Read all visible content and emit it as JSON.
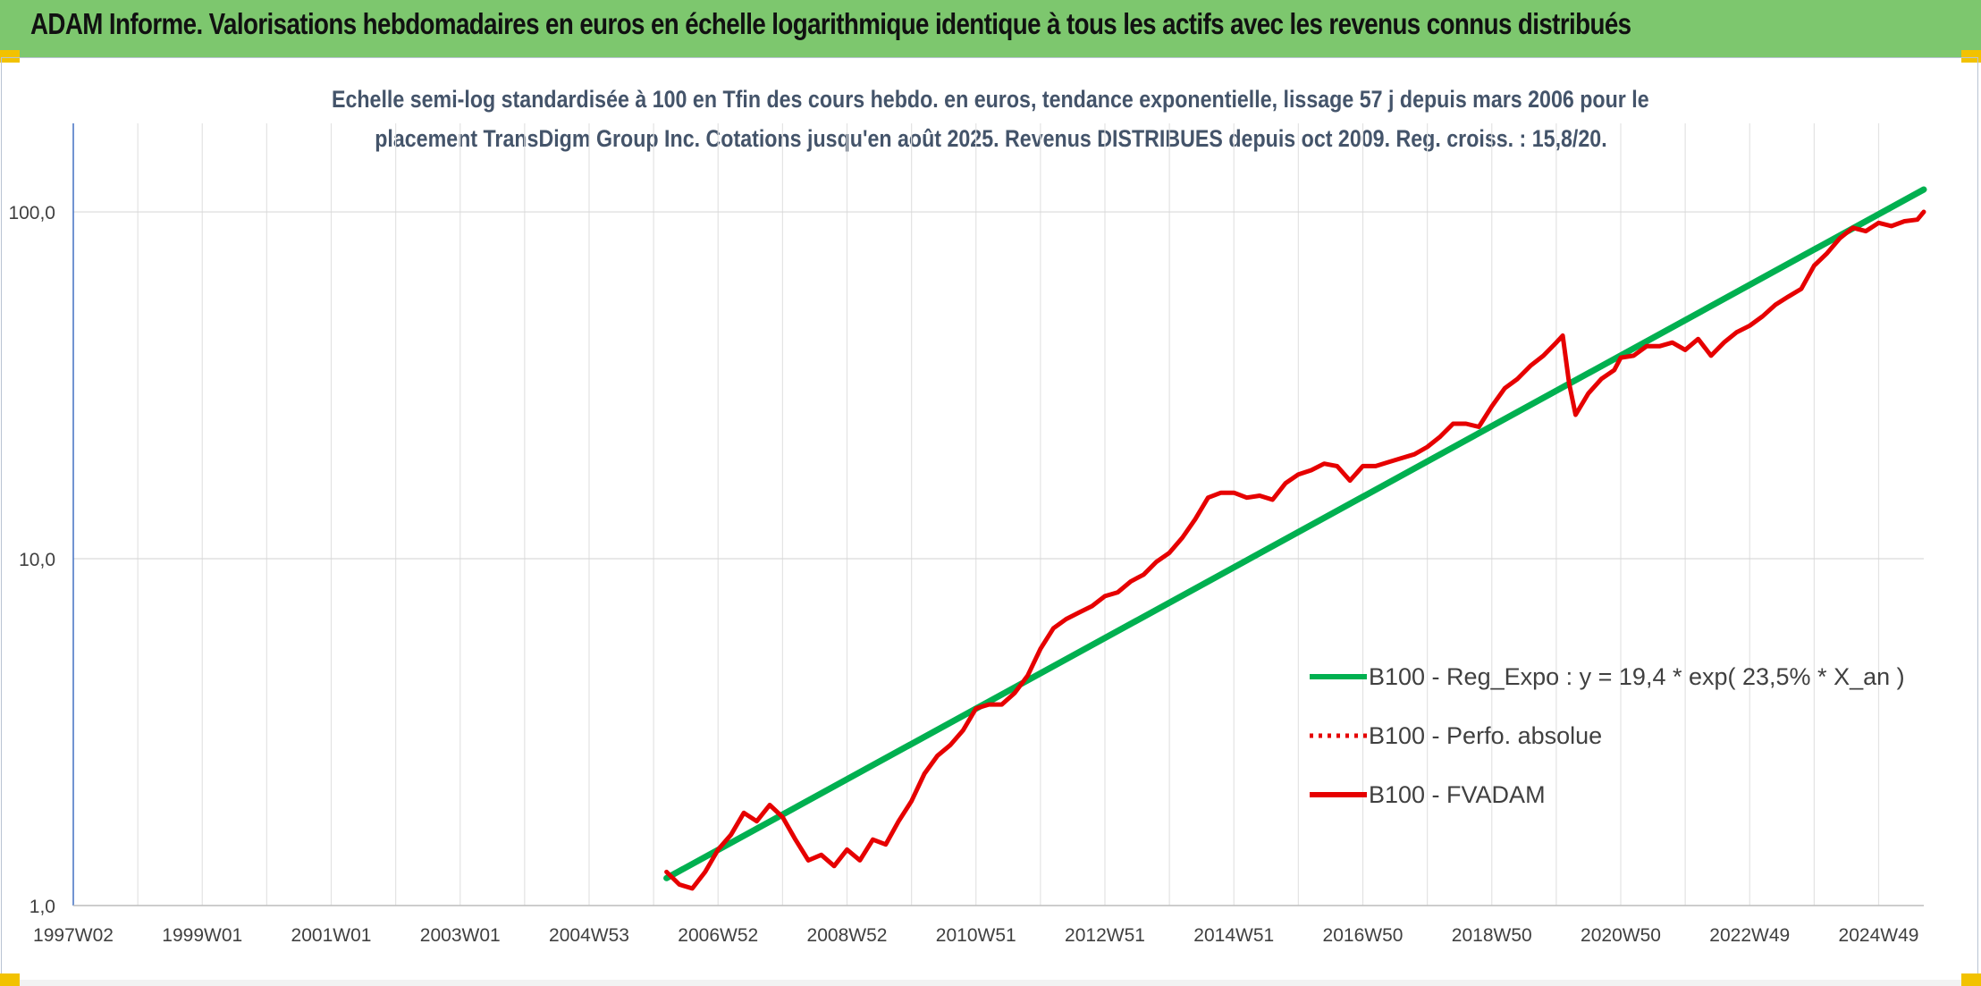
{
  "header": {
    "title": "ADAM Informe. Valorisations hebdomadaires en euros en échelle logarithmique identique à tous les actifs avec les revenus connus distribués"
  },
  "chart_data": {
    "type": "line",
    "title_line1": "Echelle semi-log standardisée à 100 en Tfin des cours hebdo. en euros, tendance exponentielle, lissage 57 j depuis mars 2006 pour le",
    "title_line2": "placement TransDigm Group Inc. Cotations jusqu'en août 2025. Revenus DISTRIBUES depuis oct 2009. Reg. croiss. : 15,8/20.",
    "y_scale": "log",
    "ylim": [
      1,
      180
    ],
    "y_ticks": [
      {
        "value": 1,
        "label": "1,0"
      },
      {
        "value": 10,
        "label": "10,0"
      },
      {
        "value": 100,
        "label": "100,0"
      }
    ],
    "xlim": [
      1997.0,
      2025.7
    ],
    "x_ticks": [
      {
        "value": 1997.0,
        "label": "1997W02"
      },
      {
        "value": 1999.0,
        "label": "1999W01"
      },
      {
        "value": 2001.0,
        "label": "2001W01"
      },
      {
        "value": 2003.0,
        "label": "2003W01"
      },
      {
        "value": 2005.0,
        "label": "2004W53"
      },
      {
        "value": 2007.0,
        "label": "2006W52"
      },
      {
        "value": 2009.0,
        "label": "2008W52"
      },
      {
        "value": 2011.0,
        "label": "2010W51"
      },
      {
        "value": 2013.0,
        "label": "2012W51"
      },
      {
        "value": 2015.0,
        "label": "2014W51"
      },
      {
        "value": 2017.0,
        "label": "2016W50"
      },
      {
        "value": 2019.0,
        "label": "2018W50"
      },
      {
        "value": 2021.0,
        "label": "2020W50"
      },
      {
        "value": 2023.0,
        "label": "2022W49"
      },
      {
        "value": 2025.0,
        "label": "2024W49"
      }
    ],
    "grid": true,
    "legend_position": "bottom-right",
    "series": [
      {
        "name": "B100 - Reg_Expo : y = 19,4 * exp( 23,5% *  X_an )",
        "color": "#00b050",
        "style": "solid",
        "points": [
          [
            2006.2,
            1.2
          ],
          [
            2025.7,
            116
          ]
        ]
      },
      {
        "name": "B100 - Perfo. absolue",
        "color": "#e60000",
        "style": "dotted",
        "points": []
      },
      {
        "name": "B100 - FVADAM",
        "color": "#e60000",
        "style": "solid",
        "points": [
          [
            2006.2,
            1.25
          ],
          [
            2006.4,
            1.15
          ],
          [
            2006.6,
            1.12
          ],
          [
            2006.8,
            1.25
          ],
          [
            2007.0,
            1.45
          ],
          [
            2007.2,
            1.6
          ],
          [
            2007.4,
            1.85
          ],
          [
            2007.6,
            1.75
          ],
          [
            2007.8,
            1.95
          ],
          [
            2008.0,
            1.8
          ],
          [
            2008.2,
            1.55
          ],
          [
            2008.4,
            1.35
          ],
          [
            2008.6,
            1.4
          ],
          [
            2008.8,
            1.3
          ],
          [
            2009.0,
            1.45
          ],
          [
            2009.2,
            1.35
          ],
          [
            2009.4,
            1.55
          ],
          [
            2009.6,
            1.5
          ],
          [
            2009.8,
            1.75
          ],
          [
            2010.0,
            2.0
          ],
          [
            2010.2,
            2.4
          ],
          [
            2010.4,
            2.7
          ],
          [
            2010.6,
            2.9
          ],
          [
            2010.8,
            3.2
          ],
          [
            2011.0,
            3.7
          ],
          [
            2011.2,
            3.8
          ],
          [
            2011.4,
            3.8
          ],
          [
            2011.6,
            4.1
          ],
          [
            2011.8,
            4.6
          ],
          [
            2012.0,
            5.5
          ],
          [
            2012.2,
            6.3
          ],
          [
            2012.4,
            6.7
          ],
          [
            2012.6,
            7.0
          ],
          [
            2012.8,
            7.3
          ],
          [
            2013.0,
            7.8
          ],
          [
            2013.2,
            8.0
          ],
          [
            2013.4,
            8.6
          ],
          [
            2013.6,
            9.0
          ],
          [
            2013.8,
            9.8
          ],
          [
            2014.0,
            10.4
          ],
          [
            2014.2,
            11.5
          ],
          [
            2014.4,
            13.0
          ],
          [
            2014.6,
            15.0
          ],
          [
            2014.8,
            15.5
          ],
          [
            2015.0,
            15.5
          ],
          [
            2015.2,
            15.0
          ],
          [
            2015.4,
            15.2
          ],
          [
            2015.6,
            14.8
          ],
          [
            2015.8,
            16.5
          ],
          [
            2016.0,
            17.5
          ],
          [
            2016.2,
            18.0
          ],
          [
            2016.4,
            18.8
          ],
          [
            2016.6,
            18.5
          ],
          [
            2016.8,
            16.8
          ],
          [
            2017.0,
            18.5
          ],
          [
            2017.2,
            18.5
          ],
          [
            2017.4,
            19.0
          ],
          [
            2017.6,
            19.5
          ],
          [
            2017.8,
            20.0
          ],
          [
            2018.0,
            21.0
          ],
          [
            2018.2,
            22.5
          ],
          [
            2018.4,
            24.5
          ],
          [
            2018.6,
            24.5
          ],
          [
            2018.8,
            24.0
          ],
          [
            2019.0,
            27.5
          ],
          [
            2019.2,
            31.0
          ],
          [
            2019.4,
            33.0
          ],
          [
            2019.6,
            36.0
          ],
          [
            2019.8,
            38.5
          ],
          [
            2020.0,
            42.0
          ],
          [
            2020.1,
            44.0
          ],
          [
            2020.2,
            32.0
          ],
          [
            2020.3,
            26.0
          ],
          [
            2020.5,
            30.0
          ],
          [
            2020.7,
            33.0
          ],
          [
            2020.9,
            35.0
          ],
          [
            2021.0,
            38.0
          ],
          [
            2021.2,
            38.5
          ],
          [
            2021.4,
            41.0
          ],
          [
            2021.6,
            41.0
          ],
          [
            2021.8,
            42.0
          ],
          [
            2022.0,
            40.0
          ],
          [
            2022.2,
            43.0
          ],
          [
            2022.4,
            38.5
          ],
          [
            2022.6,
            42.0
          ],
          [
            2022.8,
            45.0
          ],
          [
            2023.0,
            47.0
          ],
          [
            2023.2,
            50.0
          ],
          [
            2023.4,
            54.0
          ],
          [
            2023.6,
            57.0
          ],
          [
            2023.8,
            60.0
          ],
          [
            2024.0,
            70.0
          ],
          [
            2024.2,
            76.0
          ],
          [
            2024.4,
            84.0
          ],
          [
            2024.6,
            90.0
          ],
          [
            2024.8,
            88.0
          ],
          [
            2025.0,
            93.0
          ],
          [
            2025.2,
            91.0
          ],
          [
            2025.4,
            94.0
          ],
          [
            2025.6,
            95.0
          ],
          [
            2025.7,
            100.0
          ]
        ]
      }
    ]
  }
}
